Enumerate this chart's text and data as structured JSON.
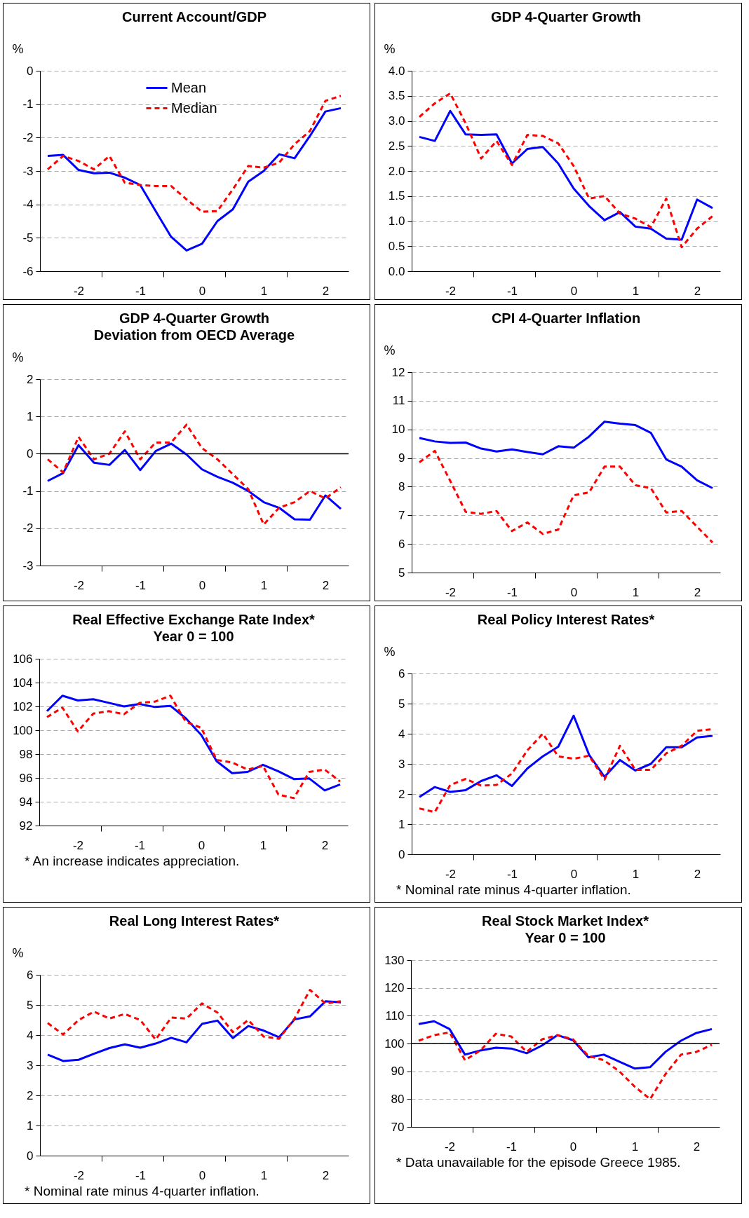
{
  "chart_data": [
    {
      "type": "line",
      "title": "Current Account/GDP",
      "ylabel": "%",
      "x": [
        -2.5,
        -2.25,
        -2,
        -1.75,
        -1.5,
        -1.25,
        -1,
        -0.75,
        -0.5,
        -0.25,
        0,
        0.25,
        0.5,
        0.75,
        1,
        1.25,
        1.5,
        1.75,
        2,
        2.25
      ],
      "xlim": [
        -2.625,
        2.375
      ],
      "xticks": [
        -2,
        -1,
        0,
        1,
        2,
        {
          "value": -1.625,
          "label": null
        },
        {
          "value": -0.625,
          "label": null
        },
        {
          "value": 0.375,
          "label": null
        },
        {
          "value": 1.375,
          "label": null
        }
      ],
      "ylim": [
        -6,
        0
      ],
      "yticks": [
        -6,
        -5,
        -4,
        -3,
        -2,
        -1,
        0
      ],
      "grid": "y",
      "legend": "top left",
      "marker": "none",
      "series": [
        {
          "name": "Mean",
          "color": "#0000ff",
          "line_style": "solid",
          "values": [
            -2.55,
            -2.52,
            -2.97,
            -3.07,
            -3.05,
            -3.2,
            -3.42,
            -4.2,
            -4.97,
            -5.38,
            -5.18,
            -4.5,
            -4.15,
            -3.32,
            -3.0,
            -2.5,
            -2.62,
            -1.95,
            -1.22,
            -1.12
          ]
        },
        {
          "name": "Median",
          "color": "#ff0000",
          "line_style": "dashed",
          "values": [
            -2.95,
            -2.55,
            -2.7,
            -2.95,
            -2.55,
            -3.35,
            -3.42,
            -3.45,
            -3.45,
            -3.85,
            -4.22,
            -4.2,
            -3.55,
            -2.85,
            -2.9,
            -2.75,
            -2.2,
            -1.8,
            -0.9,
            -0.75
          ]
        }
      ]
    },
    {
      "type": "line",
      "title": "GDP 4-Quarter Growth",
      "ylabel": "%",
      "x": [
        -2.5,
        -2.25,
        -2,
        -1.75,
        -1.5,
        -1.25,
        -1,
        -0.75,
        -0.5,
        -0.25,
        0,
        0.25,
        0.5,
        0.75,
        1,
        1.25,
        1.5,
        1.75,
        2,
        2.25
      ],
      "xlim": [
        -2.625,
        2.375
      ],
      "xticks": [
        -2,
        -1,
        0,
        1,
        2,
        {
          "value": -1.625,
          "label": null
        },
        {
          "value": -0.625,
          "label": null
        },
        {
          "value": 0.375,
          "label": null
        },
        {
          "value": 1.375,
          "label": null
        }
      ],
      "ylim": [
        0,
        4
      ],
      "yticks": [
        {
          "value": 0,
          "label": "0.0"
        },
        {
          "value": 0.5,
          "label": "0.5"
        },
        {
          "value": 1,
          "label": "1.0"
        },
        {
          "value": 1.5,
          "label": "1.5"
        },
        {
          "value": 2,
          "label": "2.0"
        },
        {
          "value": 2.5,
          "label": "2.5"
        },
        {
          "value": 3,
          "label": "3.0"
        },
        {
          "value": 3.5,
          "label": "3.5"
        },
        {
          "value": 4,
          "label": "4.0"
        }
      ],
      "grid": "y",
      "marker": "none",
      "series": [
        {
          "color": "#0000ff",
          "line_style": "solid",
          "values": [
            2.68,
            2.6,
            3.2,
            2.73,
            2.72,
            2.73,
            2.15,
            2.44,
            2.48,
            2.15,
            1.65,
            1.3,
            1.02,
            1.18,
            0.89,
            0.85,
            0.65,
            0.63,
            1.43,
            1.26
          ]
        },
        {
          "color": "#ff0000",
          "line_style": "dashed",
          "values": [
            3.08,
            3.35,
            3.55,
            2.95,
            2.25,
            2.6,
            2.12,
            2.72,
            2.7,
            2.55,
            2.1,
            1.45,
            1.5,
            1.15,
            1.05,
            0.88,
            1.45,
            0.48,
            0.85,
            1.1
          ]
        }
      ]
    },
    {
      "type": "line",
      "title": "GDP 4-Quarter Growth",
      "subtitle": "Deviation from OECD Average",
      "ylabel": "%",
      "x": [
        -2.5,
        -2.25,
        -2,
        -1.75,
        -1.5,
        -1.25,
        -1,
        -0.75,
        -0.5,
        -0.25,
        0,
        0.25,
        0.5,
        0.75,
        1,
        1.25,
        1.5,
        1.75,
        2,
        2.25
      ],
      "xlim": [
        -2.625,
        2.375
      ],
      "xticks": [
        -2,
        -1,
        0,
        1,
        2,
        {
          "value": -1.625,
          "label": null
        },
        {
          "value": -0.625,
          "label": null
        },
        {
          "value": 0.375,
          "label": null
        },
        {
          "value": 1.375,
          "label": null
        }
      ],
      "ylim": [
        -3,
        2
      ],
      "yticks": [
        -3,
        -2,
        -1,
        0,
        1,
        2
      ],
      "grid": "y",
      "marker": "none",
      "ref_lines": [
        {
          "axis": "y",
          "value": 0,
          "color": "#000000"
        }
      ],
      "series": [
        {
          "color": "#0000ff",
          "line_style": "solid",
          "values": [
            -0.73,
            -0.52,
            0.23,
            -0.24,
            -0.3,
            0.1,
            -0.44,
            0.07,
            0.27,
            -0.02,
            -0.42,
            -0.62,
            -0.78,
            -1.0,
            -1.3,
            -1.45,
            -1.76,
            -1.77,
            -1.12,
            -1.48
          ]
        },
        {
          "color": "#ff0000",
          "line_style": "dashed",
          "values": [
            -0.15,
            -0.5,
            0.45,
            -0.15,
            0.0,
            0.6,
            -0.15,
            0.3,
            0.3,
            0.78,
            0.15,
            -0.15,
            -0.55,
            -0.95,
            -1.9,
            -1.45,
            -1.3,
            -1.0,
            -1.2,
            -0.9
          ]
        }
      ]
    },
    {
      "type": "line",
      "title": "CPI 4-Quarter Inflation",
      "ylabel": "%",
      "x": [
        -2.5,
        -2.25,
        -2,
        -1.75,
        -1.5,
        -1.25,
        -1,
        -0.75,
        -0.5,
        -0.25,
        0,
        0.25,
        0.5,
        0.75,
        1,
        1.25,
        1.5,
        1.75,
        2,
        2.25
      ],
      "xlim": [
        -2.625,
        2.375
      ],
      "xticks": [
        -2,
        -1,
        0,
        1,
        2,
        {
          "value": -1.625,
          "label": null
        },
        {
          "value": -0.625,
          "label": null
        },
        {
          "value": 0.375,
          "label": null
        },
        {
          "value": 1.375,
          "label": null
        }
      ],
      "ylim": [
        5,
        12
      ],
      "yticks": [
        5,
        6,
        7,
        8,
        9,
        10,
        11,
        12
      ],
      "grid": "y",
      "marker": "none",
      "series": [
        {
          "color": "#0000ff",
          "line_style": "solid",
          "values": [
            9.7,
            9.58,
            9.53,
            9.54,
            9.33,
            9.23,
            9.3,
            9.21,
            9.13,
            9.41,
            9.36,
            9.75,
            10.27,
            10.2,
            10.15,
            9.88,
            8.95,
            8.7,
            8.22,
            7.95
          ]
        },
        {
          "color": "#ff0000",
          "line_style": "dashed",
          "values": [
            8.85,
            9.25,
            8.2,
            7.12,
            7.05,
            7.15,
            6.45,
            6.75,
            6.35,
            6.5,
            7.7,
            7.8,
            8.7,
            8.7,
            8.05,
            7.95,
            7.1,
            7.15,
            6.6,
            6.05
          ]
        }
      ]
    },
    {
      "type": "line",
      "title": "Real Effective Exchange Rate Index*",
      "subtitle": "Year 0 = 100",
      "annotations": [
        "* An increase indicates appreciation."
      ],
      "x": [
        -2.5,
        -2.25,
        -2,
        -1.75,
        -1.5,
        -1.25,
        -1,
        -0.75,
        -0.5,
        -0.25,
        0,
        0.25,
        0.5,
        0.75,
        1,
        1.25,
        1.5,
        1.75,
        2,
        2.25
      ],
      "xlim": [
        -2.625,
        2.375
      ],
      "xticks": [
        -2,
        -1,
        0,
        1,
        2,
        {
          "value": -1.625,
          "label": null
        },
        {
          "value": -0.625,
          "label": null
        },
        {
          "value": 0.375,
          "label": null
        },
        {
          "value": 1.375,
          "label": null
        }
      ],
      "ylim": [
        92,
        106
      ],
      "yticks": [
        92,
        94,
        96,
        98,
        100,
        102,
        104,
        106
      ],
      "grid": "y",
      "marker": "none",
      "series": [
        {
          "color": "#0000ff",
          "line_style": "solid",
          "values": [
            101.6,
            102.9,
            102.5,
            102.6,
            102.3,
            102.0,
            102.2,
            101.95,
            102.05,
            101.0,
            99.6,
            97.4,
            96.4,
            96.5,
            97.1,
            96.55,
            95.9,
            95.95,
            94.95,
            95.45
          ]
        },
        {
          "color": "#ff0000",
          "line_style": "dashed",
          "values": [
            101.1,
            101.9,
            99.9,
            101.4,
            101.6,
            101.35,
            102.3,
            102.4,
            102.9,
            100.7,
            100.2,
            97.5,
            97.3,
            96.7,
            97.0,
            94.6,
            94.3,
            96.5,
            96.7,
            95.7
          ]
        }
      ]
    },
    {
      "type": "line",
      "title": "Real Policy Interest Rates*",
      "ylabel": "%",
      "annotations": [
        "* Nominal rate minus 4-quarter inflation."
      ],
      "x": [
        -2.5,
        -2.25,
        -2,
        -1.75,
        -1.5,
        -1.25,
        -1,
        -0.75,
        -0.5,
        -0.25,
        0,
        0.25,
        0.5,
        0.75,
        1,
        1.25,
        1.5,
        1.75,
        2,
        2.25
      ],
      "xlim": [
        -2.625,
        2.375
      ],
      "xticks": [
        -2,
        -1,
        0,
        1,
        2,
        {
          "value": -1.625,
          "label": null
        },
        {
          "value": -0.625,
          "label": null
        },
        {
          "value": 0.375,
          "label": null
        },
        {
          "value": 1.375,
          "label": null
        }
      ],
      "ylim": [
        0,
        6
      ],
      "yticks": [
        0,
        1,
        2,
        3,
        4,
        5,
        6
      ],
      "grid": "y",
      "marker": "none",
      "series": [
        {
          "color": "#0000ff",
          "line_style": "solid",
          "values": [
            1.9,
            2.23,
            2.07,
            2.13,
            2.43,
            2.62,
            2.27,
            2.85,
            3.25,
            3.57,
            4.6,
            3.3,
            2.57,
            3.13,
            2.78,
            3.0,
            3.55,
            3.55,
            3.88,
            3.93
          ]
        },
        {
          "color": "#ff0000",
          "line_style": "dashed",
          "values": [
            1.52,
            1.4,
            2.3,
            2.5,
            2.28,
            2.3,
            2.68,
            3.45,
            4.0,
            3.25,
            3.17,
            3.27,
            2.48,
            3.6,
            2.8,
            2.8,
            3.35,
            3.6,
            4.1,
            4.15
          ]
        }
      ]
    },
    {
      "type": "line",
      "title": "Real Long Interest Rates*",
      "ylabel": "%",
      "annotations": [
        "* Nominal rate minus 4-quarter inflation."
      ],
      "x": [
        -2.5,
        -2.25,
        -2,
        -1.75,
        -1.5,
        -1.25,
        -1,
        -0.75,
        -0.5,
        -0.25,
        0,
        0.25,
        0.5,
        0.75,
        1,
        1.25,
        1.5,
        1.75,
        2,
        2.25
      ],
      "xlim": [
        -2.625,
        2.375
      ],
      "xticks": [
        -2,
        -1,
        0,
        1,
        2,
        {
          "value": -1.625,
          "label": null
        },
        {
          "value": -0.625,
          "label": null
        },
        {
          "value": 0.375,
          "label": null
        },
        {
          "value": 1.375,
          "label": null
        }
      ],
      "ylim": [
        0,
        6
      ],
      "yticks": [
        0,
        1,
        2,
        3,
        4,
        5,
        6
      ],
      "grid": "y",
      "marker": "none",
      "series": [
        {
          "color": "#0000ff",
          "line_style": "solid",
          "values": [
            3.35,
            3.14,
            3.18,
            3.38,
            3.57,
            3.69,
            3.58,
            3.72,
            3.91,
            3.76,
            4.37,
            4.48,
            3.9,
            4.3,
            4.15,
            3.93,
            4.52,
            4.62,
            5.12,
            5.09
          ]
        },
        {
          "color": "#ff0000",
          "line_style": "dashed",
          "values": [
            4.4,
            4.02,
            4.5,
            4.78,
            4.55,
            4.7,
            4.5,
            3.85,
            4.58,
            4.55,
            5.05,
            4.75,
            4.1,
            4.5,
            3.95,
            3.88,
            4.55,
            5.5,
            5.05,
            5.12
          ]
        }
      ]
    },
    {
      "type": "line",
      "title": "Real Stock Market Index*",
      "subtitle": "Year 0 = 100",
      "annotations": [
        "* Data unavailable for the episode Greece 1985."
      ],
      "x": [
        -2.5,
        -2.25,
        -2,
        -1.75,
        -1.5,
        -1.25,
        -1,
        -0.75,
        -0.5,
        -0.25,
        0,
        0.25,
        0.5,
        0.75,
        1,
        1.25,
        1.5,
        1.75,
        2,
        2.25
      ],
      "xlim": [
        -2.625,
        2.375
      ],
      "xticks": [
        -2,
        -1,
        0,
        1,
        2,
        {
          "value": -1.625,
          "label": null
        },
        {
          "value": -0.625,
          "label": null
        },
        {
          "value": 0.375,
          "label": null
        },
        {
          "value": 1.375,
          "label": null
        }
      ],
      "ylim": [
        70,
        130
      ],
      "yticks": [
        70,
        80,
        90,
        100,
        110,
        120,
        130
      ],
      "grid": "y",
      "marker": "none",
      "ref_lines": [
        {
          "axis": "y",
          "value": 100,
          "color": "#000000"
        }
      ],
      "series": [
        {
          "color": "#0000ff",
          "line_style": "solid",
          "values": [
            107,
            108,
            105.2,
            96,
            97.5,
            98.5,
            98.2,
            96.5,
            99.3,
            103,
            101.2,
            95,
            96,
            93.5,
            91,
            91.5,
            97,
            101,
            103.8,
            105.2
          ]
        },
        {
          "color": "#ff0000",
          "line_style": "dashed",
          "values": [
            101,
            103,
            104,
            94,
            97.5,
            103.5,
            102.5,
            97,
            101.5,
            103,
            101.5,
            95.5,
            94,
            90,
            84.5,
            80,
            89,
            96,
            97,
            99.5
          ]
        }
      ]
    }
  ]
}
